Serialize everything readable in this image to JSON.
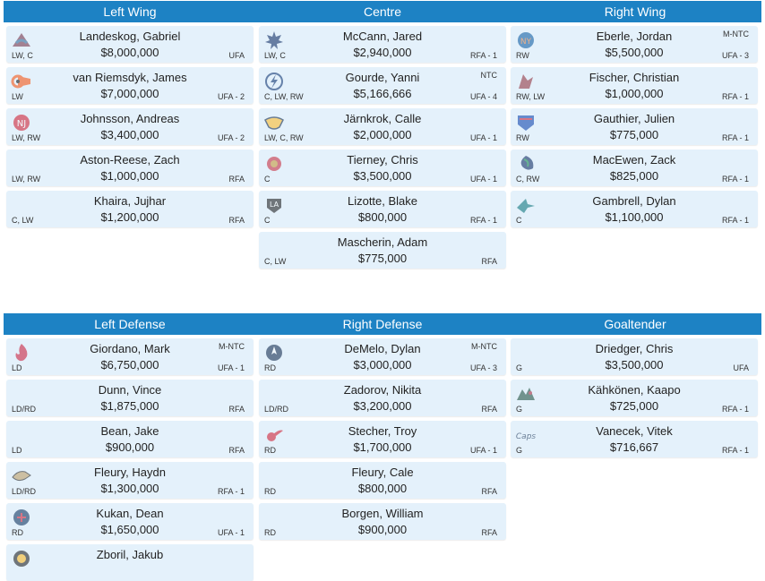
{
  "sections": {
    "forwards": {
      "headers": [
        "Left Wing",
        "Centre",
        "Right Wing"
      ]
    },
    "defense": {
      "headers": [
        "Left Defense",
        "Right Defense",
        "Goaltender"
      ]
    }
  },
  "players": [
    {
      "name": "Landeskog, Gabriel",
      "cap": "$8,000,000",
      "pos": "LW, C",
      "status": "UFA",
      "clause": "",
      "logo": "avalanche-logo-icon"
    },
    {
      "name": "van Riemsdyk, James",
      "cap": "$7,000,000",
      "pos": "LW",
      "status": "UFA - 2",
      "clause": "",
      "logo": "flyers-logo-icon"
    },
    {
      "name": "Johnsson, Andreas",
      "cap": "$3,400,000",
      "pos": "LW, RW",
      "status": "UFA - 2",
      "clause": "",
      "logo": "devils-logo-icon"
    },
    {
      "name": "Aston-Reese, Zach",
      "cap": "$1,000,000",
      "pos": "LW, RW",
      "status": "RFA",
      "clause": "",
      "logo": ""
    },
    {
      "name": "Khaira, Jujhar",
      "cap": "$1,200,000",
      "pos": "C, LW",
      "status": "RFA",
      "clause": "",
      "logo": ""
    },
    {
      "name": "McCann, Jared",
      "cap": "$2,940,000",
      "pos": "LW, C",
      "status": "RFA - 1",
      "clause": "",
      "logo": "maple-leafs-logo-icon"
    },
    {
      "name": "Gourde, Yanni",
      "cap": "$5,166,666",
      "pos": "C, LW, RW",
      "status": "UFA - 4",
      "clause": "NTC",
      "logo": "lightning-logo-icon"
    },
    {
      "name": "Järnkrok, Calle",
      "cap": "$2,000,000",
      "pos": "LW, C, RW",
      "status": "UFA - 1",
      "clause": "",
      "logo": "predators-logo-icon"
    },
    {
      "name": "Tierney, Chris",
      "cap": "$3,500,000",
      "pos": "C",
      "status": "UFA - 1",
      "clause": "",
      "logo": "senators-logo-icon"
    },
    {
      "name": "Lizotte, Blake",
      "cap": "$800,000",
      "pos": "C",
      "status": "RFA - 1",
      "clause": "",
      "logo": "kings-logo-icon"
    },
    {
      "name": "Mascherin, Adam",
      "cap": "$775,000",
      "pos": "C, LW",
      "status": "RFA",
      "clause": "",
      "logo": ""
    },
    {
      "name": "Eberle, Jordan",
      "cap": "$5,500,000",
      "pos": "RW",
      "status": "UFA - 3",
      "clause": "M-NTC",
      "logo": "islanders-logo-icon"
    },
    {
      "name": "Fischer, Christian",
      "cap": "$1,000,000",
      "pos": "RW, LW",
      "status": "RFA - 1",
      "clause": "",
      "logo": "coyotes-logo-icon"
    },
    {
      "name": "Gauthier, Julien",
      "cap": "$775,000",
      "pos": "RW",
      "status": "RFA - 1",
      "clause": "",
      "logo": "rangers-logo-icon"
    },
    {
      "name": "MacEwen, Zack",
      "cap": "$825,000",
      "pos": "C, RW",
      "status": "RFA - 1",
      "clause": "",
      "logo": "canucks-logo-icon"
    },
    {
      "name": "Gambrell, Dylan",
      "cap": "$1,100,000",
      "pos": "C",
      "status": "RFA - 1",
      "clause": "",
      "logo": "sharks-logo-icon"
    },
    {
      "name": "Giordano, Mark",
      "cap": "$6,750,000",
      "pos": "LD",
      "status": "UFA - 1",
      "clause": "M-NTC",
      "logo": "flames-logo-icon"
    },
    {
      "name": "Dunn, Vince",
      "cap": "$1,875,000",
      "pos": "LD/RD",
      "status": "RFA",
      "clause": "",
      "logo": ""
    },
    {
      "name": "Bean, Jake",
      "cap": "$900,000",
      "pos": "LD",
      "status": "RFA",
      "clause": "",
      "logo": ""
    },
    {
      "name": "Fleury, Haydn",
      "cap": "$1,300,000",
      "pos": "LD/RD",
      "status": "RFA - 1",
      "clause": "",
      "logo": "ducks-logo-icon"
    },
    {
      "name": "Kukan, Dean",
      "cap": "$1,650,000",
      "pos": "RD",
      "status": "UFA - 1",
      "clause": "",
      "logo": "blue-jackets-logo-icon"
    },
    {
      "name": "Zboril, Jakub",
      "cap": "",
      "pos": "",
      "status": "",
      "clause": "",
      "logo": "bruins-logo-icon"
    },
    {
      "name": "DeMelo, Dylan",
      "cap": "$3,000,000",
      "pos": "RD",
      "status": "UFA - 3",
      "clause": "M-NTC",
      "logo": "jets-logo-icon"
    },
    {
      "name": "Zadorov, Nikita",
      "cap": "$3,200,000",
      "pos": "LD/RD",
      "status": "RFA",
      "clause": "",
      "logo": ""
    },
    {
      "name": "Stecher, Troy",
      "cap": "$1,700,000",
      "pos": "RD",
      "status": "UFA - 1",
      "clause": "",
      "logo": "red-wings-logo-icon"
    },
    {
      "name": "Fleury, Cale",
      "cap": "$800,000",
      "pos": "RD",
      "status": "RFA",
      "clause": "",
      "logo": ""
    },
    {
      "name": "Borgen, William",
      "cap": "$900,000",
      "pos": "RD",
      "status": "RFA",
      "clause": "",
      "logo": ""
    },
    {
      "name": "Driedger, Chris",
      "cap": "$3,500,000",
      "pos": "G",
      "status": "UFA",
      "clause": "",
      "logo": ""
    },
    {
      "name": "Kähkönen, Kaapo",
      "cap": "$725,000",
      "pos": "G",
      "status": "RFA - 1",
      "clause": "",
      "logo": "wild-logo-icon"
    },
    {
      "name": "Vanecek, Vitek",
      "cap": "$716,667",
      "pos": "G",
      "status": "RFA - 1",
      "clause": "",
      "logo": "capitals-logo-icon"
    }
  ]
}
